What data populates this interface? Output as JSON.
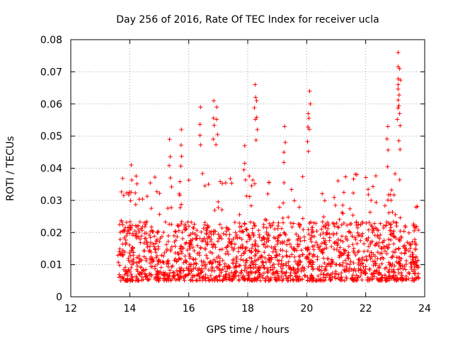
{
  "chart_data": {
    "type": "scatter",
    "title": "Day 256 of 2016, Rate Of TEC Index for receiver ucla",
    "xlabel": "GPS time / hours",
    "ylabel": "ROTI / TECUs",
    "xlim": [
      12,
      24
    ],
    "ylim": [
      0,
      0.08
    ],
    "xticks": [
      12,
      14,
      16,
      18,
      20,
      22,
      24
    ],
    "xtick_labels": [
      "12",
      "14",
      "16",
      "18",
      "20",
      "22",
      "24"
    ],
    "yticks": [
      0,
      0.01,
      0.02,
      0.03,
      0.04,
      0.05,
      0.06,
      0.07,
      0.08
    ],
    "ytick_labels": [
      "0",
      "0.01",
      "0.02",
      "0.03",
      "0.04",
      "0.05",
      "0.06",
      "0.07",
      "0.08"
    ],
    "grid": true,
    "marker": "+",
    "series": [
      {
        "name": "ROTI",
        "color": "#ff0000",
        "x_range": [
          13.6,
          23.8
        ],
        "baseline_band": [
          0.005,
          0.028
        ],
        "notable_points": [
          {
            "x": 14.05,
            "y": 0.041
          },
          {
            "x": 15.35,
            "y": 0.049
          },
          {
            "x": 15.75,
            "y": 0.052
          },
          {
            "x": 16.4,
            "y": 0.059
          },
          {
            "x": 16.85,
            "y": 0.061
          },
          {
            "x": 16.95,
            "y": 0.059
          },
          {
            "x": 17.9,
            "y": 0.047
          },
          {
            "x": 18.25,
            "y": 0.066
          },
          {
            "x": 18.3,
            "y": 0.061
          },
          {
            "x": 19.25,
            "y": 0.053
          },
          {
            "x": 20.1,
            "y": 0.064
          },
          {
            "x": 20.05,
            "y": 0.057
          },
          {
            "x": 22.75,
            "y": 0.053
          },
          {
            "x": 23.1,
            "y": 0.076
          },
          {
            "x": 23.15,
            "y": 0.071
          },
          {
            "x": 23.1,
            "y": 0.066
          },
          {
            "x": 23.15,
            "y": 0.057
          }
        ]
      }
    ]
  }
}
